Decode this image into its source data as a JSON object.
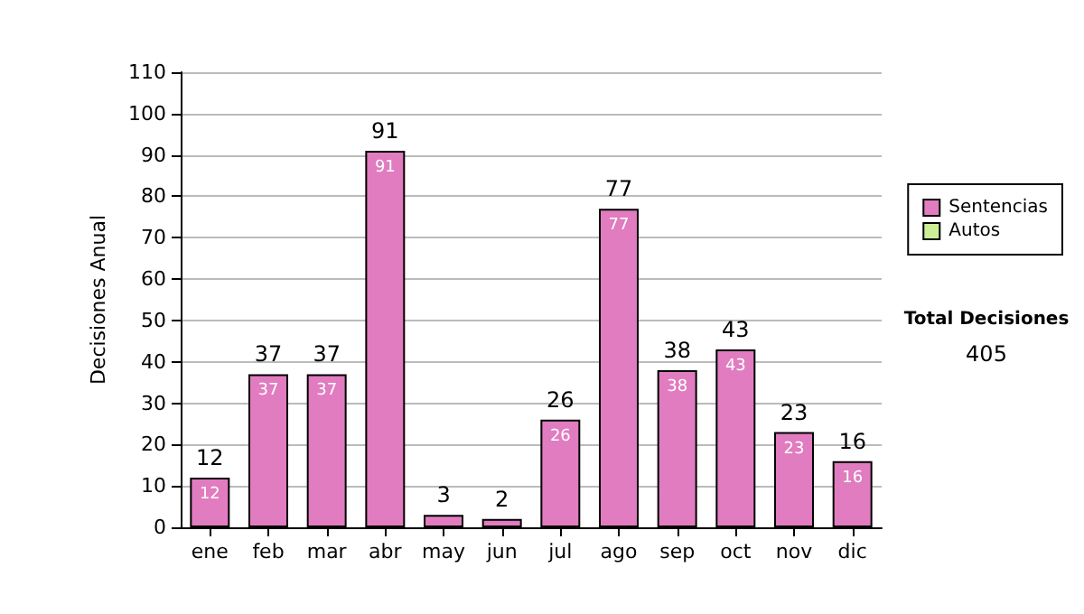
{
  "chart_data": {
    "type": "bar",
    "ylabel": "Decisiones Anual",
    "categories": [
      "ene",
      "feb",
      "mar",
      "abr",
      "may",
      "jun",
      "jul",
      "ago",
      "sep",
      "oct",
      "nov",
      "dic"
    ],
    "series": [
      {
        "name": "Sentencias",
        "color": "#e07cbf",
        "values": [
          12,
          37,
          37,
          91,
          3,
          2,
          26,
          77,
          38,
          43,
          23,
          16
        ],
        "value_labels": [
          "12",
          "37",
          "37",
          "91",
          null,
          null,
          "26",
          "77",
          "38",
          "43",
          "23",
          "16"
        ]
      },
      {
        "name": "Autos",
        "color": "#ccee99",
        "values": [
          0,
          0,
          0,
          0,
          0,
          0,
          0,
          0,
          0,
          0,
          0,
          0
        ]
      }
    ],
    "stacked": true,
    "totals": [
      "12",
      "37",
      "37",
      "91",
      "3",
      "2",
      "26",
      "77",
      "38",
      "43",
      "23",
      "16"
    ],
    "ylim": [
      0,
      110
    ],
    "yticks": [
      0,
      10,
      20,
      30,
      40,
      50,
      60,
      70,
      80,
      90,
      100,
      110
    ],
    "grid": "y",
    "legend": "right",
    "annotations": [
      "Total Decisiones",
      "405"
    ]
  }
}
